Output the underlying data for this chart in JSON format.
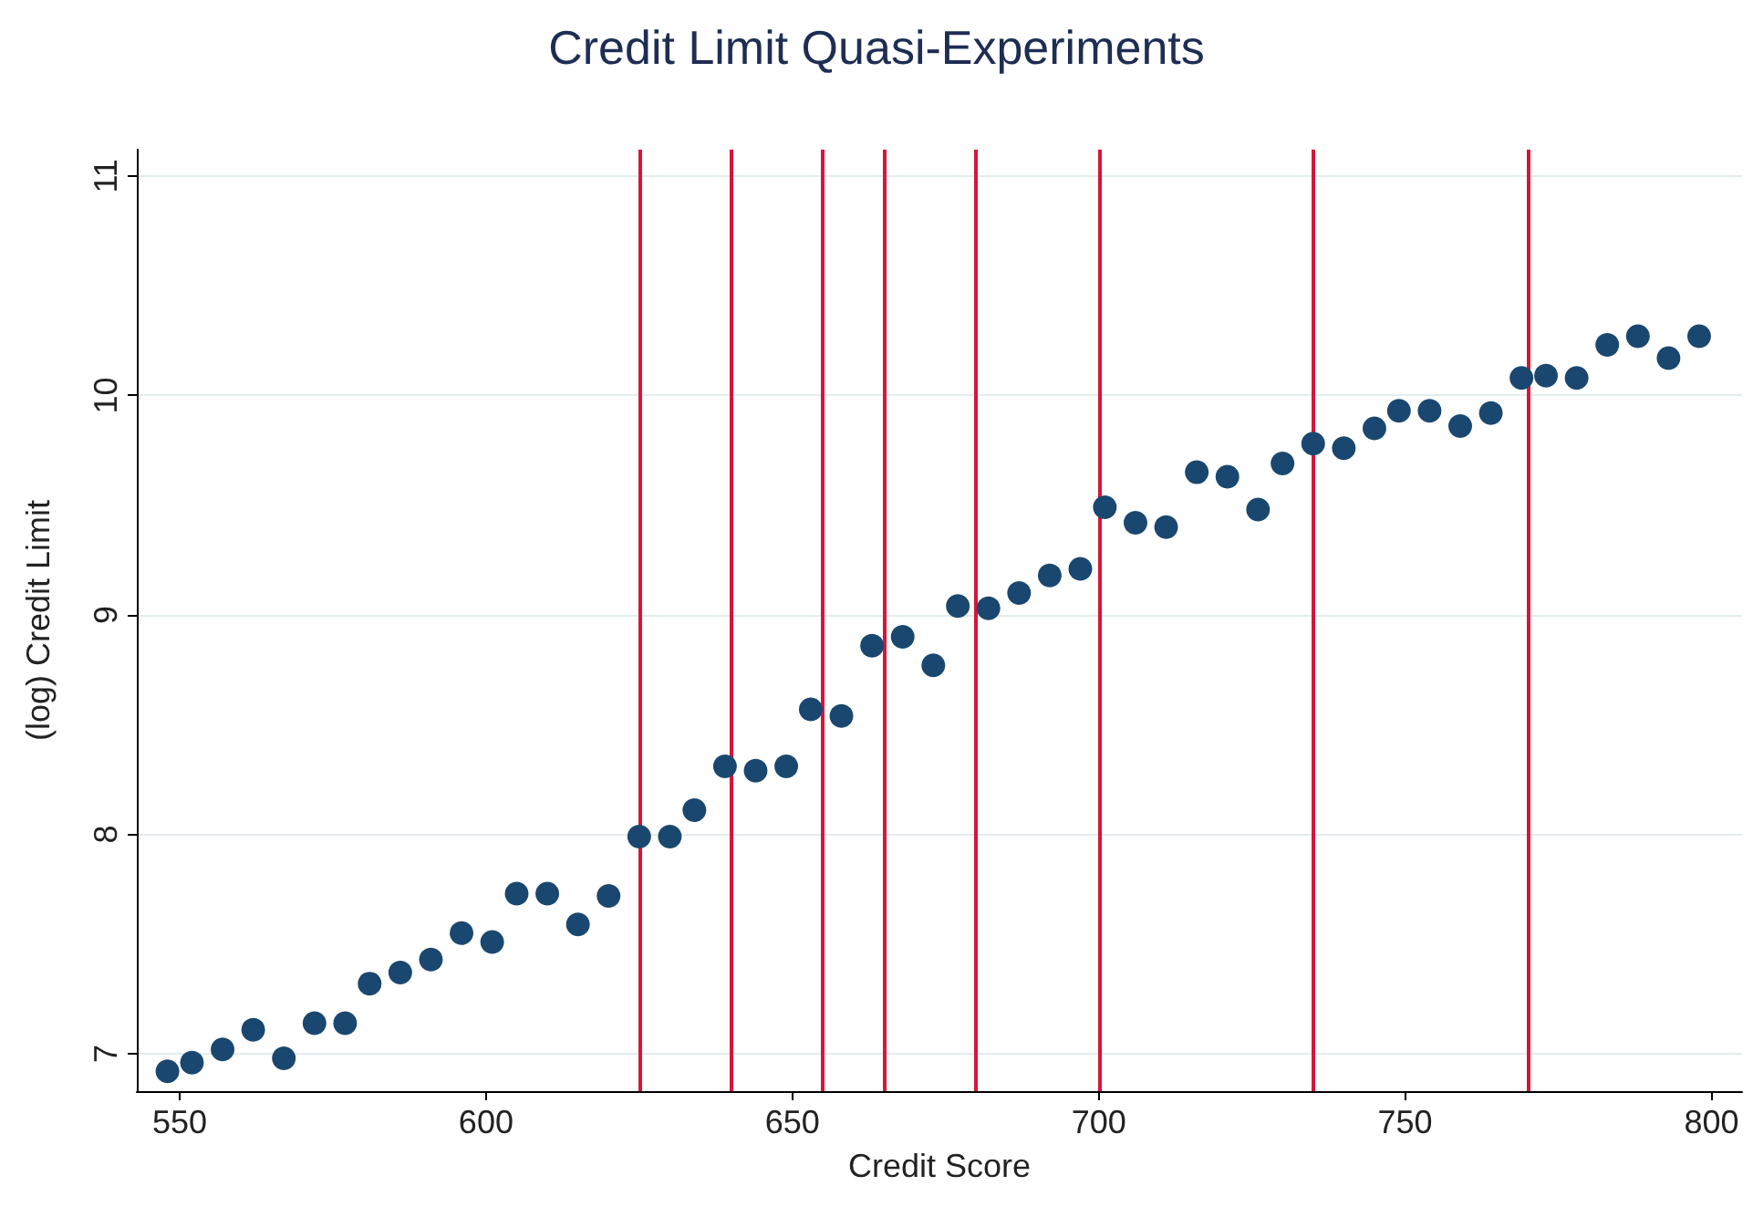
{
  "chart_data": {
    "type": "scatter",
    "title": "Credit Limit Quasi-Experiments",
    "xlabel": "Credit Score",
    "ylabel": "(log) Credit Limit",
    "x": [
      548,
      552,
      557,
      562,
      567,
      572,
      577,
      581,
      586,
      591,
      596,
      601,
      605,
      610,
      615,
      620,
      625,
      630,
      634,
      639,
      644,
      649,
      653,
      658,
      663,
      668,
      673,
      677,
      682,
      687,
      692,
      697,
      701,
      706,
      711,
      716,
      721,
      726,
      730,
      735,
      740,
      745,
      749,
      754,
      759,
      764,
      769,
      773,
      778,
      783,
      788,
      793,
      798
    ],
    "series": [
      {
        "color": "#1a476f",
        "values": [
          6.92,
          6.96,
          7.02,
          7.11,
          6.98,
          7.14,
          7.14,
          7.32,
          7.37,
          7.43,
          7.55,
          7.51,
          7.73,
          7.73,
          7.59,
          7.72,
          7.99,
          7.99,
          8.11,
          8.31,
          8.29,
          8.31,
          8.57,
          8.54,
          8.86,
          8.9,
          8.77,
          9.04,
          9.03,
          9.1,
          9.18,
          9.21,
          9.49,
          9.42,
          9.4,
          9.65,
          9.63,
          9.48,
          9.69,
          9.78,
          9.76,
          9.85,
          9.93,
          9.93,
          9.86,
          9.92,
          10.08,
          10.09,
          10.08,
          10.23,
          10.27,
          10.17,
          10.27
        ]
      }
    ],
    "xlim": [
      543,
      805
    ],
    "xticks": [
      550,
      600,
      650,
      700,
      750,
      800
    ],
    "ylim": [
      6.83,
      11.12
    ],
    "yticks": [
      7,
      8,
      9,
      10,
      11
    ],
    "ref_lines": [
      {
        "axis": "x",
        "value": 625,
        "color": "#d7153a"
      },
      {
        "axis": "x",
        "value": 640,
        "color": "#d7153a"
      },
      {
        "axis": "x",
        "value": 655,
        "color": "#d7153a"
      },
      {
        "axis": "x",
        "value": 665,
        "color": "#d7153a"
      },
      {
        "axis": "x",
        "value": 680,
        "color": "#d7153a"
      },
      {
        "axis": "x",
        "value": 700,
        "color": "#d7153a"
      },
      {
        "axis": "x",
        "value": 735,
        "color": "#d7153a"
      },
      {
        "axis": "x",
        "value": 770,
        "color": "#d7153a"
      }
    ],
    "grid": "y",
    "marker": "circle"
  }
}
